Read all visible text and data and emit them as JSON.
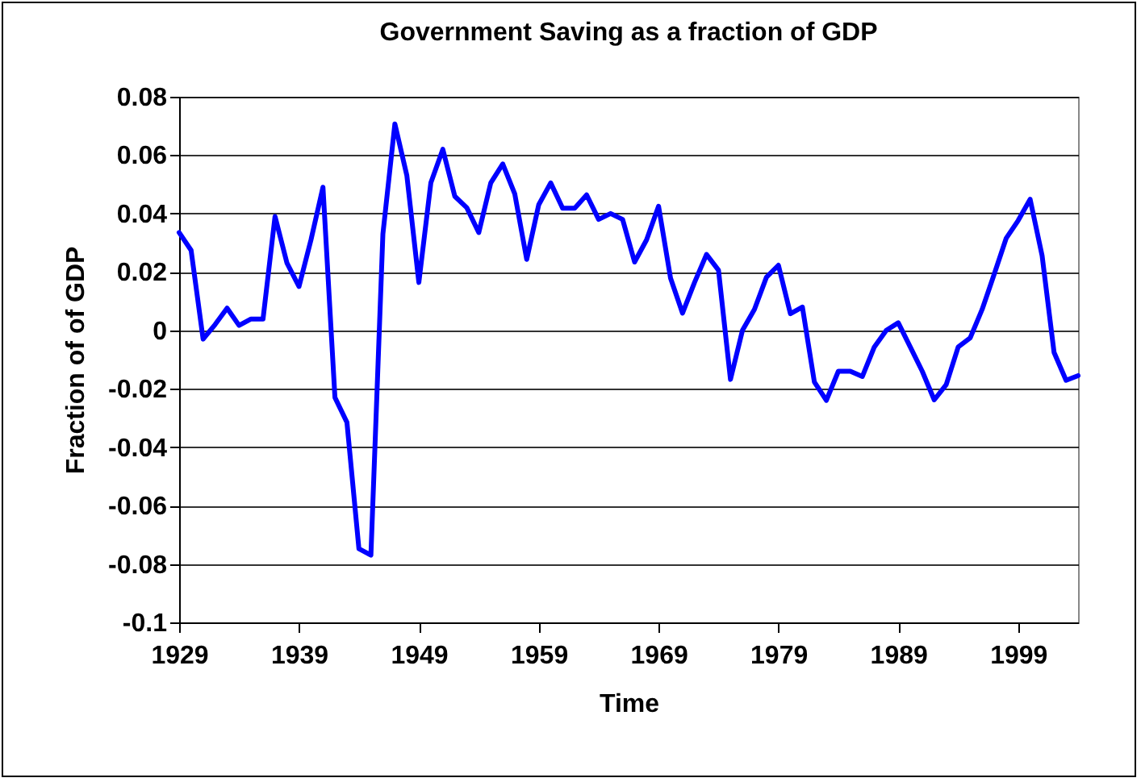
{
  "chart_data": {
    "type": "line",
    "title": "Government Saving as a fraction of GDP",
    "xlabel": "Time",
    "ylabel": "Fraction of of GDP",
    "x": [
      1929,
      1930,
      1931,
      1932,
      1933,
      1934,
      1935,
      1936,
      1937,
      1938,
      1939,
      1940,
      1941,
      1942,
      1943,
      1944,
      1945,
      1946,
      1947,
      1948,
      1949,
      1950,
      1951,
      1952,
      1953,
      1954,
      1955,
      1956,
      1957,
      1958,
      1959,
      1960,
      1961,
      1962,
      1963,
      1964,
      1965,
      1966,
      1967,
      1968,
      1969,
      1970,
      1971,
      1972,
      1973,
      1974,
      1975,
      1976,
      1977,
      1978,
      1979,
      1980,
      1981,
      1982,
      1983,
      1984,
      1985,
      1986,
      1987,
      1988,
      1989,
      1990,
      1991,
      1992,
      1993,
      1994,
      1995,
      1996,
      1997,
      1998,
      1999,
      2000,
      2001,
      2002,
      2003,
      2004
    ],
    "series": [
      {
        "color": "#0000ff",
        "values": [
          0.0335,
          0.0274,
          -0.003,
          0.002,
          0.0076,
          0.0017,
          0.0039,
          0.0039,
          0.039,
          0.023,
          0.015,
          0.031,
          0.049,
          -0.023,
          -0.0315,
          -0.0748,
          -0.077,
          0.033,
          0.0707,
          0.053,
          0.0164,
          0.0505,
          0.062,
          0.0459,
          0.042,
          0.0335,
          0.0505,
          0.057,
          0.0468,
          0.0243,
          0.043,
          0.0505,
          0.0418,
          0.0418,
          0.0464,
          0.038,
          0.04,
          0.038,
          0.0234,
          0.031,
          0.0425,
          0.0179,
          0.0059,
          0.0164,
          0.026,
          0.0206,
          -0.0168,
          0,
          0.0072,
          0.0182,
          0.0223,
          0.0057,
          0.008,
          -0.0177,
          -0.024,
          -0.014,
          -0.014,
          -0.0158,
          -0.0057,
          0,
          0.0026,
          -0.0057,
          -0.014,
          -0.0238,
          -0.0186,
          -0.0057,
          -0.0026,
          0.0072,
          0.0192,
          0.0315,
          0.0376,
          0.0449,
          0.0256,
          -0.0076,
          -0.0171,
          -0.0155
        ]
      }
    ],
    "xlim": [
      1929,
      2004
    ],
    "xticks": [
      1929,
      1939,
      1949,
      1959,
      1969,
      1979,
      1989,
      1999
    ],
    "ylim": [
      -0.1,
      0.08
    ],
    "yticks": [
      -0.1,
      -0.08,
      -0.06,
      -0.04,
      -0.02,
      0,
      0.02,
      0.04,
      0.06,
      0.08
    ],
    "grid": "y",
    "marker": "none",
    "line_style": "solid"
  }
}
